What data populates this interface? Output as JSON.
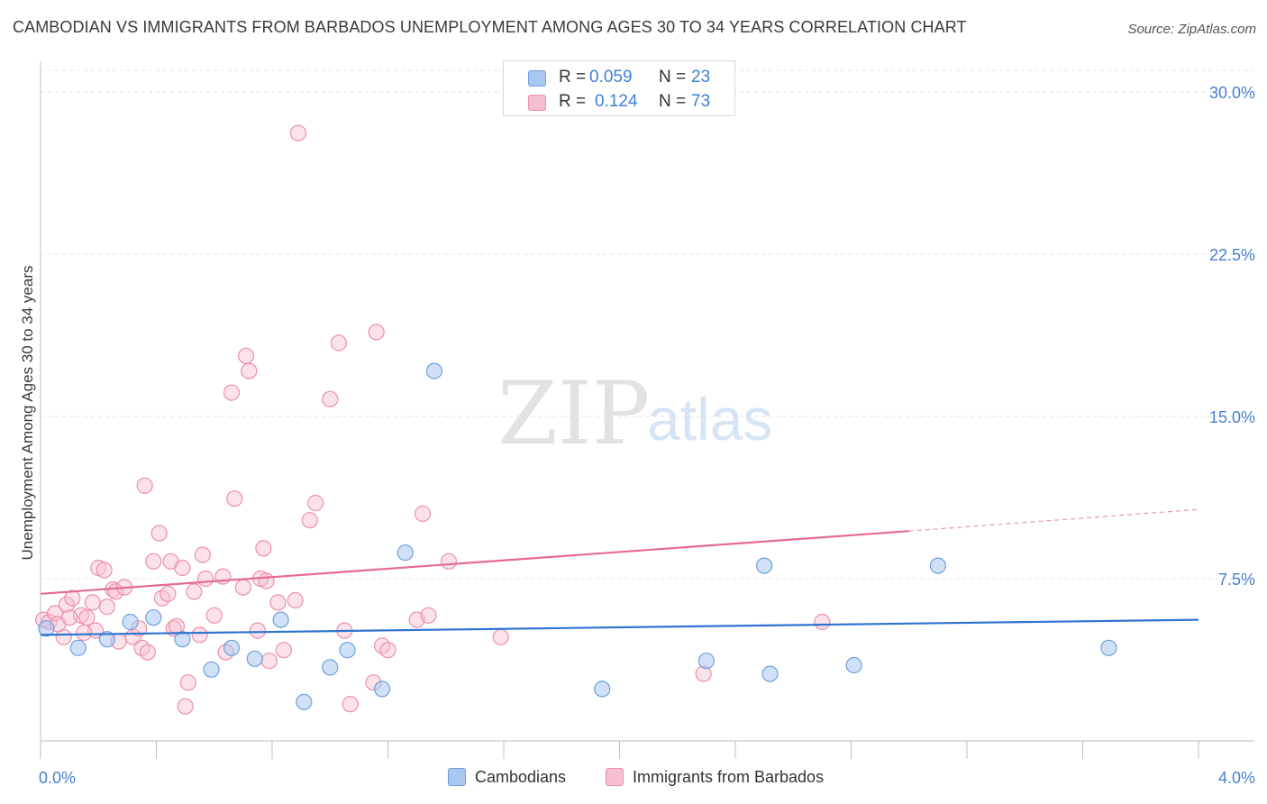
{
  "header": {
    "title": "CAMBODIAN VS IMMIGRANTS FROM BARBADOS UNEMPLOYMENT AMONG AGES 30 TO 34 YEARS CORRELATION CHART",
    "source": "Source: ZipAtlas.com"
  },
  "watermark": {
    "zip": "ZIP",
    "atlas": "atlas"
  },
  "legend": {
    "rows": [
      {
        "r_label": "R = ",
        "r_value": "0.059",
        "n_label": "N = ",
        "n_value": "23",
        "color": "#a9c8f0"
      },
      {
        "r_label": "R = ",
        "r_value": "0.124",
        "n_label": "N = ",
        "n_value": "73",
        "color": "#f6bfd0"
      }
    ]
  },
  "bottom_legend": {
    "cambodians": "Cambodians",
    "barbados": "Immigrants from Barbados"
  },
  "colors": {
    "blue_fill": "#a9c8f0",
    "blue_stroke": "#6f9fdc",
    "blue_line": "#2f74d0",
    "pink_fill": "#f6bfd0",
    "pink_stroke": "#ec8fab",
    "pink_line": "#e46b93",
    "grid": "#e3e3e3",
    "tick_text": "#4a7fcf"
  },
  "chart_data": {
    "type": "scatter",
    "title": "CAMBODIAN VS IMMIGRANTS FROM BARBADOS UNEMPLOYMENT AMONG AGES 30 TO 34 YEARS CORRELATION CHART",
    "xlabel": "",
    "ylabel": "Unemployment Among Ages 30 to 34 years",
    "xlim": [
      0,
      4.0
    ],
    "ylim": [
      0,
      31.0
    ],
    "x_tick_labels": [
      "0.0%",
      "4.0%"
    ],
    "y_ticks": [
      7.5,
      15.0,
      22.5,
      30.0
    ],
    "y_tick_labels": [
      "7.5%",
      "15.0%",
      "22.5%",
      "30.0%"
    ],
    "series": [
      {
        "name": "Cambodians",
        "r": 0.059,
        "n": 23,
        "trend": {
          "x": [
            0.0,
            4.0
          ],
          "y": [
            4.9,
            5.6
          ]
        },
        "points": [
          [
            0.02,
            5.2
          ],
          [
            0.13,
            4.3
          ],
          [
            0.23,
            4.7
          ],
          [
            0.31,
            5.5
          ],
          [
            0.39,
            5.7
          ],
          [
            0.49,
            4.7
          ],
          [
            0.59,
            3.3
          ],
          [
            0.66,
            4.3
          ],
          [
            0.74,
            3.8
          ],
          [
            0.83,
            5.6
          ],
          [
            0.91,
            1.8
          ],
          [
            1.0,
            3.4
          ],
          [
            1.06,
            4.2
          ],
          [
            1.18,
            2.4
          ],
          [
            1.26,
            8.7
          ],
          [
            1.36,
            17.1
          ],
          [
            1.94,
            2.4
          ],
          [
            2.3,
            3.7
          ],
          [
            2.5,
            8.1
          ],
          [
            2.52,
            3.1
          ],
          [
            2.81,
            3.5
          ],
          [
            3.1,
            8.1
          ],
          [
            3.69,
            4.3
          ]
        ]
      },
      {
        "name": "Immigrants from Barbados",
        "r": 0.124,
        "n": 73,
        "trend": {
          "x": [
            0.0,
            3.0
          ],
          "y": [
            6.8,
            9.7
          ]
        },
        "trend_dashed": {
          "x": [
            3.0,
            4.0
          ],
          "y": [
            9.7,
            10.7
          ]
        },
        "points": [
          [
            0.01,
            5.6
          ],
          [
            0.03,
            5.5
          ],
          [
            0.05,
            5.9
          ],
          [
            0.08,
            4.8
          ],
          [
            0.09,
            6.3
          ],
          [
            0.11,
            6.6
          ],
          [
            0.14,
            5.8
          ],
          [
            0.16,
            5.7
          ],
          [
            0.18,
            6.4
          ],
          [
            0.19,
            5.1
          ],
          [
            0.2,
            8.0
          ],
          [
            0.22,
            7.9
          ],
          [
            0.23,
            6.2
          ],
          [
            0.25,
            7.0
          ],
          [
            0.26,
            6.9
          ],
          [
            0.27,
            4.6
          ],
          [
            0.29,
            7.1
          ],
          [
            0.32,
            4.8
          ],
          [
            0.34,
            5.2
          ],
          [
            0.35,
            4.3
          ],
          [
            0.36,
            11.8
          ],
          [
            0.39,
            8.3
          ],
          [
            0.41,
            9.6
          ],
          [
            0.42,
            6.6
          ],
          [
            0.44,
            6.8
          ],
          [
            0.45,
            8.3
          ],
          [
            0.46,
            5.2
          ],
          [
            0.47,
            5.3
          ],
          [
            0.49,
            8.0
          ],
          [
            0.5,
            1.6
          ],
          [
            0.51,
            2.7
          ],
          [
            0.53,
            6.9
          ],
          [
            0.55,
            4.9
          ],
          [
            0.56,
            8.6
          ],
          [
            0.57,
            7.5
          ],
          [
            0.6,
            5.8
          ],
          [
            0.63,
            7.6
          ],
          [
            0.64,
            4.1
          ],
          [
            0.66,
            16.1
          ],
          [
            0.67,
            11.2
          ],
          [
            0.7,
            7.1
          ],
          [
            0.71,
            17.8
          ],
          [
            0.72,
            17.1
          ],
          [
            0.75,
            5.1
          ],
          [
            0.76,
            7.5
          ],
          [
            0.77,
            8.9
          ],
          [
            0.78,
            7.4
          ],
          [
            0.79,
            3.7
          ],
          [
            0.82,
            6.4
          ],
          [
            0.84,
            4.2
          ],
          [
            0.88,
            6.5
          ],
          [
            0.89,
            28.1
          ],
          [
            0.93,
            10.2
          ],
          [
            0.95,
            11.0
          ],
          [
            1.0,
            15.8
          ],
          [
            1.03,
            18.4
          ],
          [
            1.05,
            5.1
          ],
          [
            1.07,
            1.7
          ],
          [
            1.15,
            2.7
          ],
          [
            1.16,
            18.9
          ],
          [
            1.18,
            4.4
          ],
          [
            1.2,
            4.2
          ],
          [
            1.3,
            5.6
          ],
          [
            1.32,
            10.5
          ],
          [
            1.34,
            5.8
          ],
          [
            1.41,
            8.3
          ],
          [
            1.59,
            4.8
          ],
          [
            2.29,
            3.1
          ],
          [
            2.7,
            5.5
          ],
          [
            0.06,
            5.4
          ],
          [
            0.1,
            5.7
          ],
          [
            0.15,
            5.0
          ],
          [
            0.37,
            4.1
          ]
        ]
      }
    ]
  }
}
